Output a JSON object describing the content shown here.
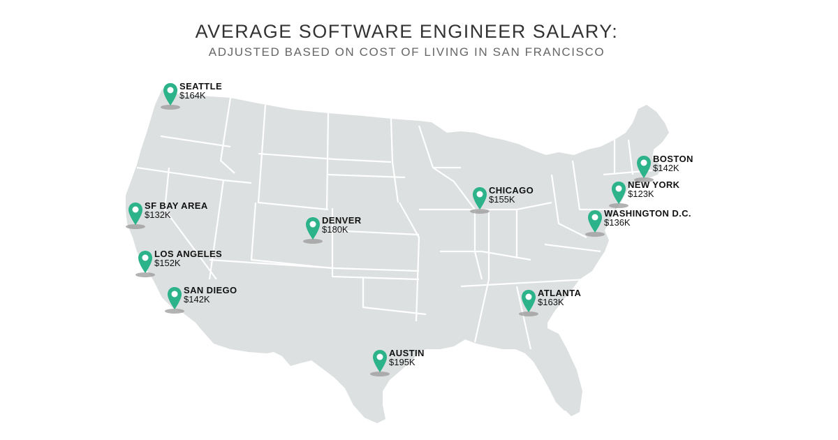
{
  "header": {
    "title": "AVERAGE SOFTWARE ENGINEER SALARY:",
    "subtitle": "ADJUSTED BASED ON COST OF LIVING IN SAN FRANCISCO"
  },
  "colors": {
    "map_fill": "#dde0e0",
    "state_border": "#ffffff",
    "pin": "#2db38a",
    "pin_dot": "#ffffff",
    "shadow": "#9a9a9a",
    "title_text": "#333333",
    "subtitle_text": "#666666"
  },
  "markers": [
    {
      "city": "SEATTLE",
      "salary": "$164K",
      "icon": "map-pin-icon"
    },
    {
      "city": "SF BAY AREA",
      "salary": "$132K",
      "icon": "map-pin-icon"
    },
    {
      "city": "LOS ANGELES",
      "salary": "$152K",
      "icon": "map-pin-icon"
    },
    {
      "city": "SAN DIEGO",
      "salary": "$142K",
      "icon": "map-pin-icon"
    },
    {
      "city": "DENVER",
      "salary": "$180K",
      "icon": "map-pin-icon"
    },
    {
      "city": "AUSTIN",
      "salary": "$195K",
      "icon": "map-pin-icon"
    },
    {
      "city": "CHICAGO",
      "salary": "$155K",
      "icon": "map-pin-icon"
    },
    {
      "city": "ATLANTA",
      "salary": "$163K",
      "icon": "map-pin-icon"
    },
    {
      "city": "WASHINGTON  D.C.",
      "salary": "$136K",
      "icon": "map-pin-icon"
    },
    {
      "city": "NEW YORK",
      "salary": "$123K",
      "icon": "map-pin-icon"
    },
    {
      "city": "BOSTON",
      "salary": "$142K",
      "icon": "map-pin-icon"
    }
  ]
}
